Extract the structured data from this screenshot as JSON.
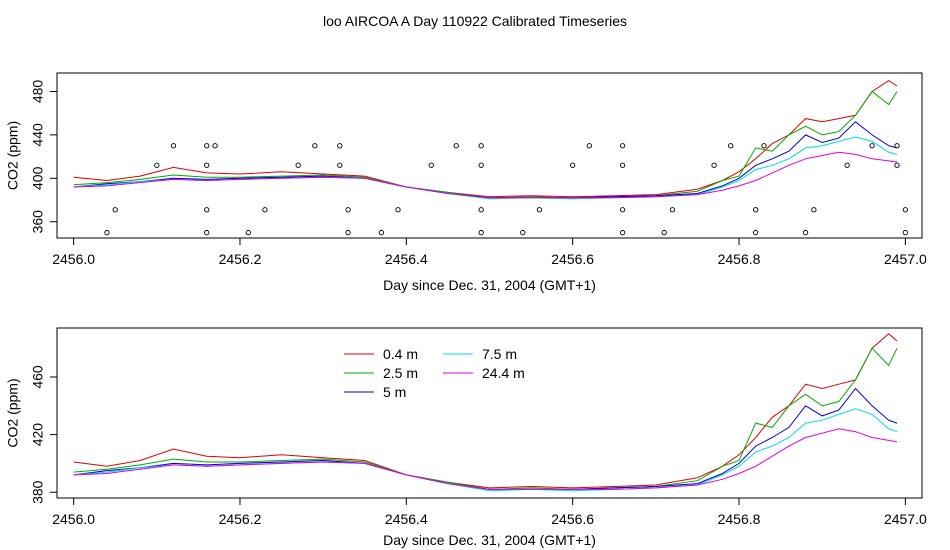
{
  "title": "loo AIRCOA A  Day 110922  Calibrated Timeseries",
  "colors": {
    "0.4 m": "#dd0000",
    "2.5 m": "#00aa00",
    "5 m": "#0000cc",
    "7.5 m": "#00dddd",
    "24.4 m": "#dd00dd"
  },
  "chart_data": [
    {
      "type": "line",
      "title": "loo AIRCOA A  Day 110922  Calibrated Timeseries",
      "xlabel": "Day since Dec. 31, 2004 (GMT+1)",
      "ylabel": "CO2 (ppm)",
      "xlim": [
        2455.98,
        2457.02
      ],
      "ylim": [
        345,
        497
      ],
      "xticks": [
        "2456.0",
        "2456.2",
        "2456.4",
        "2456.6",
        "2456.8",
        "2457.0"
      ],
      "yticks": [
        "360",
        "400",
        "440",
        "480"
      ],
      "grid": false,
      "legend": "none",
      "series": [
        {
          "name": "0.4 m",
          "x": [
            2456.0,
            2456.04,
            2456.08,
            2456.12,
            2456.16,
            2456.2,
            2456.25,
            2456.3,
            2456.35,
            2456.4,
            2456.45,
            2456.5,
            2456.55,
            2456.6,
            2456.65,
            2456.7,
            2456.75,
            2456.78,
            2456.8,
            2456.82,
            2456.84,
            2456.86,
            2456.88,
            2456.9,
            2456.92,
            2456.94,
            2456.96,
            2456.98,
            2456.99
          ],
          "values": [
            401,
            398,
            402,
            410,
            405,
            404,
            406,
            404,
            402,
            392,
            387,
            383,
            384,
            383,
            384,
            385,
            390,
            398,
            406,
            418,
            432,
            440,
            455,
            452,
            455,
            458,
            480,
            490,
            485
          ]
        },
        {
          "name": "2.5 m",
          "x": [
            2456.0,
            2456.04,
            2456.08,
            2456.12,
            2456.16,
            2456.2,
            2456.25,
            2456.3,
            2456.35,
            2456.4,
            2456.45,
            2456.5,
            2456.55,
            2456.6,
            2456.65,
            2456.7,
            2456.75,
            2456.78,
            2456.8,
            2456.82,
            2456.84,
            2456.86,
            2456.88,
            2456.9,
            2456.92,
            2456.94,
            2456.96,
            2456.98,
            2456.99
          ],
          "values": [
            394,
            396,
            399,
            403,
            401,
            401,
            402,
            403,
            401,
            392,
            387,
            382,
            383,
            382,
            383,
            384,
            388,
            398,
            402,
            428,
            425,
            440,
            448,
            440,
            443,
            458,
            480,
            468,
            480
          ]
        },
        {
          "name": "5 m",
          "x": [
            2456.0,
            2456.04,
            2456.08,
            2456.12,
            2456.16,
            2456.2,
            2456.25,
            2456.3,
            2456.35,
            2456.4,
            2456.45,
            2456.5,
            2456.55,
            2456.6,
            2456.65,
            2456.7,
            2456.75,
            2456.78,
            2456.8,
            2456.82,
            2456.84,
            2456.86,
            2456.88,
            2456.9,
            2456.92,
            2456.94,
            2456.96,
            2456.98,
            2456.99
          ],
          "values": [
            392,
            395,
            397,
            400,
            399,
            400,
            401,
            402,
            400,
            392,
            386,
            382,
            382,
            382,
            383,
            384,
            386,
            393,
            400,
            412,
            418,
            425,
            440,
            433,
            437,
            452,
            440,
            430,
            428
          ]
        },
        {
          "name": "7.5 m",
          "x": [
            2456.0,
            2456.04,
            2456.08,
            2456.12,
            2456.16,
            2456.2,
            2456.25,
            2456.3,
            2456.35,
            2456.4,
            2456.45,
            2456.5,
            2456.55,
            2456.6,
            2456.65,
            2456.7,
            2456.75,
            2456.78,
            2456.8,
            2456.82,
            2456.84,
            2456.86,
            2456.88,
            2456.9,
            2456.92,
            2456.94,
            2456.96,
            2456.98,
            2456.99
          ],
          "values": [
            392,
            394,
            397,
            399,
            398,
            399,
            400,
            401,
            400,
            392,
            386,
            381,
            382,
            381,
            382,
            383,
            385,
            392,
            398,
            408,
            412,
            418,
            428,
            430,
            434,
            438,
            434,
            424,
            422
          ]
        },
        {
          "name": "24.4 m",
          "x": [
            2456.0,
            2456.04,
            2456.08,
            2456.12,
            2456.16,
            2456.2,
            2456.25,
            2456.3,
            2456.35,
            2456.4,
            2456.45,
            2456.5,
            2456.55,
            2456.6,
            2456.65,
            2456.7,
            2456.75,
            2456.78,
            2456.8,
            2456.82,
            2456.84,
            2456.86,
            2456.88,
            2456.9,
            2456.92,
            2456.94,
            2456.96,
            2456.98,
            2456.99
          ],
          "values": [
            392,
            393,
            396,
            399,
            398,
            399,
            400,
            401,
            400,
            392,
            386,
            382,
            382,
            382,
            382,
            383,
            385,
            389,
            393,
            398,
            405,
            412,
            418,
            421,
            424,
            422,
            418,
            416,
            415
          ]
        },
        {
          "name": "",
          "type": "scatter",
          "x": [
            2456.04,
            2456.05,
            2456.1,
            2456.12,
            2456.16,
            2456.16,
            2456.16,
            2456.16,
            2456.17,
            2456.21,
            2456.23,
            2456.27,
            2456.29,
            2456.32,
            2456.32,
            2456.33,
            2456.33,
            2456.37,
            2456.39,
            2456.43,
            2456.46,
            2456.49,
            2456.49,
            2456.49,
            2456.49,
            2456.54,
            2456.56,
            2456.6,
            2456.62,
            2456.66,
            2456.66,
            2456.66,
            2456.66,
            2456.71,
            2456.72,
            2456.77,
            2456.79,
            2456.82,
            2456.82,
            2456.83,
            2456.88,
            2456.89,
            2456.93,
            2456.96,
            2456.99,
            2457.0,
            2457.0,
            2456.99
          ],
          "values": [
            350,
            371,
            412,
            430,
            350,
            371,
            412,
            430,
            430,
            350,
            371,
            412,
            430,
            430,
            412,
            371,
            350,
            350,
            371,
            412,
            430,
            350,
            371,
            412,
            430,
            350,
            371,
            412,
            430,
            430,
            412,
            371,
            350,
            350,
            371,
            412,
            430,
            350,
            371,
            430,
            350,
            371,
            412,
            430,
            430,
            371,
            350,
            412
          ]
        }
      ]
    },
    {
      "type": "line",
      "title": "",
      "xlabel": "Day since Dec. 31, 2004 (GMT+1)",
      "ylabel": "CO2 (ppm)",
      "xlim": [
        2455.98,
        2457.02
      ],
      "ylim": [
        376,
        494
      ],
      "xticks": [
        "2456.0",
        "2456.2",
        "2456.4",
        "2456.6",
        "2456.8",
        "2457.0"
      ],
      "yticks": [
        "380",
        "420",
        "460"
      ],
      "grid": false,
      "legend": "top-left",
      "legend_entries": [
        "0.4 m",
        "2.5 m",
        "5 m",
        "7.5 m",
        "24.4 m"
      ],
      "series": [
        {
          "name": "0.4 m",
          "x": [
            2456.0,
            2456.04,
            2456.08,
            2456.12,
            2456.16,
            2456.2,
            2456.25,
            2456.3,
            2456.35,
            2456.4,
            2456.45,
            2456.5,
            2456.55,
            2456.6,
            2456.65,
            2456.7,
            2456.75,
            2456.78,
            2456.8,
            2456.82,
            2456.84,
            2456.86,
            2456.88,
            2456.9,
            2456.92,
            2456.94,
            2456.96,
            2456.98,
            2456.99
          ],
          "values": [
            401,
            398,
            402,
            410,
            405,
            404,
            406,
            404,
            402,
            392,
            387,
            383,
            384,
            383,
            384,
            385,
            390,
            398,
            406,
            418,
            432,
            440,
            455,
            452,
            455,
            458,
            480,
            490,
            485
          ]
        },
        {
          "name": "2.5 m",
          "x": [
            2456.0,
            2456.04,
            2456.08,
            2456.12,
            2456.16,
            2456.2,
            2456.25,
            2456.3,
            2456.35,
            2456.4,
            2456.45,
            2456.5,
            2456.55,
            2456.6,
            2456.65,
            2456.7,
            2456.75,
            2456.78,
            2456.8,
            2456.82,
            2456.84,
            2456.86,
            2456.88,
            2456.9,
            2456.92,
            2456.94,
            2456.96,
            2456.98,
            2456.99
          ],
          "values": [
            394,
            396,
            399,
            403,
            401,
            401,
            402,
            403,
            401,
            392,
            387,
            382,
            383,
            382,
            383,
            384,
            388,
            398,
            402,
            428,
            425,
            440,
            448,
            440,
            443,
            458,
            480,
            468,
            480
          ]
        },
        {
          "name": "5 m",
          "x": [
            2456.0,
            2456.04,
            2456.08,
            2456.12,
            2456.16,
            2456.2,
            2456.25,
            2456.3,
            2456.35,
            2456.4,
            2456.45,
            2456.5,
            2456.55,
            2456.6,
            2456.65,
            2456.7,
            2456.75,
            2456.78,
            2456.8,
            2456.82,
            2456.84,
            2456.86,
            2456.88,
            2456.9,
            2456.92,
            2456.94,
            2456.96,
            2456.98,
            2456.99
          ],
          "values": [
            392,
            395,
            397,
            400,
            399,
            400,
            401,
            402,
            400,
            392,
            386,
            382,
            382,
            382,
            383,
            384,
            386,
            393,
            400,
            412,
            418,
            425,
            440,
            433,
            437,
            452,
            440,
            430,
            428
          ]
        },
        {
          "name": "7.5 m",
          "x": [
            2456.0,
            2456.04,
            2456.08,
            2456.12,
            2456.16,
            2456.2,
            2456.25,
            2456.3,
            2456.35,
            2456.4,
            2456.45,
            2456.5,
            2456.55,
            2456.6,
            2456.65,
            2456.7,
            2456.75,
            2456.78,
            2456.8,
            2456.82,
            2456.84,
            2456.86,
            2456.88,
            2456.9,
            2456.92,
            2456.94,
            2456.96,
            2456.98,
            2456.99
          ],
          "values": [
            392,
            394,
            397,
            399,
            398,
            399,
            400,
            401,
            400,
            392,
            386,
            381,
            382,
            381,
            382,
            383,
            385,
            392,
            398,
            408,
            412,
            418,
            428,
            430,
            434,
            438,
            434,
            424,
            422
          ]
        },
        {
          "name": "24.4 m",
          "x": [
            2456.0,
            2456.04,
            2456.08,
            2456.12,
            2456.16,
            2456.2,
            2456.25,
            2456.3,
            2456.35,
            2456.4,
            2456.45,
            2456.5,
            2456.55,
            2456.6,
            2456.65,
            2456.7,
            2456.75,
            2456.78,
            2456.8,
            2456.82,
            2456.84,
            2456.86,
            2456.88,
            2456.9,
            2456.92,
            2456.94,
            2456.96,
            2456.98,
            2456.99
          ],
          "values": [
            392,
            393,
            396,
            399,
            398,
            399,
            400,
            401,
            400,
            392,
            386,
            382,
            382,
            382,
            382,
            383,
            385,
            389,
            393,
            398,
            405,
            412,
            418,
            421,
            424,
            422,
            418,
            416,
            415
          ]
        }
      ]
    }
  ]
}
